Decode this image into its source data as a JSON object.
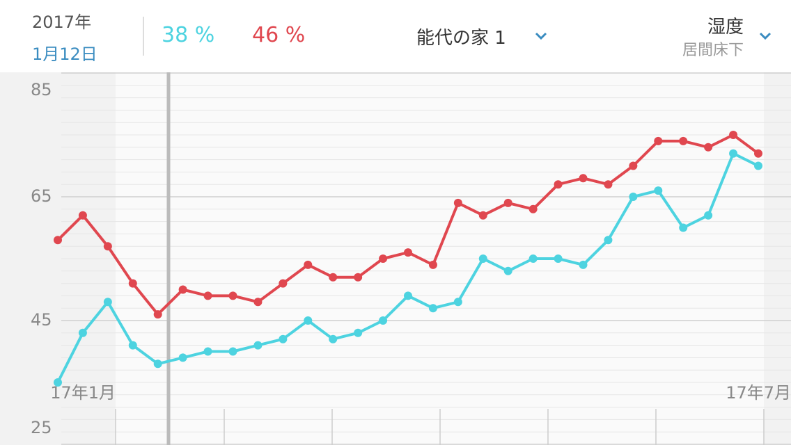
{
  "header": {
    "year": "2017年",
    "date": "1月12日",
    "reading_a": "38 %",
    "reading_b": "46 %",
    "location": "能代の家 1",
    "metric": "湿度",
    "sensor": "居間床下"
  },
  "chart_data": {
    "type": "line",
    "categories": [
      null,
      null,
      null,
      null,
      null,
      null,
      null,
      null,
      null,
      null,
      null,
      null,
      null,
      null,
      null,
      null,
      null,
      null,
      null,
      null,
      null,
      null,
      null,
      null,
      null,
      null,
      null,
      null,
      null
    ],
    "series": [
      {
        "color": "#e0474f",
        "values": [
          58,
          62,
          57,
          51,
          46,
          50,
          49,
          49,
          48,
          51,
          54,
          52,
          52,
          55,
          56,
          54,
          64,
          62,
          64,
          63,
          67,
          68,
          67,
          70,
          74,
          74,
          73,
          75,
          72
        ]
      },
      {
        "color": "#4dd3e0",
        "values": [
          35,
          43,
          48,
          41,
          38,
          39,
          40,
          40,
          41,
          42,
          45,
          42,
          43,
          45,
          49,
          47,
          48,
          55,
          53,
          55,
          55,
          54,
          58,
          65,
          66,
          60,
          62,
          72,
          70
        ]
      }
    ],
    "x_axis_labels": [
      "17年1月",
      "17年7月"
    ],
    "ylim": [
      25,
      85
    ],
    "yticks": [
      25,
      45,
      65,
      85
    ],
    "grid": true,
    "minor_grid_step": 2
  }
}
